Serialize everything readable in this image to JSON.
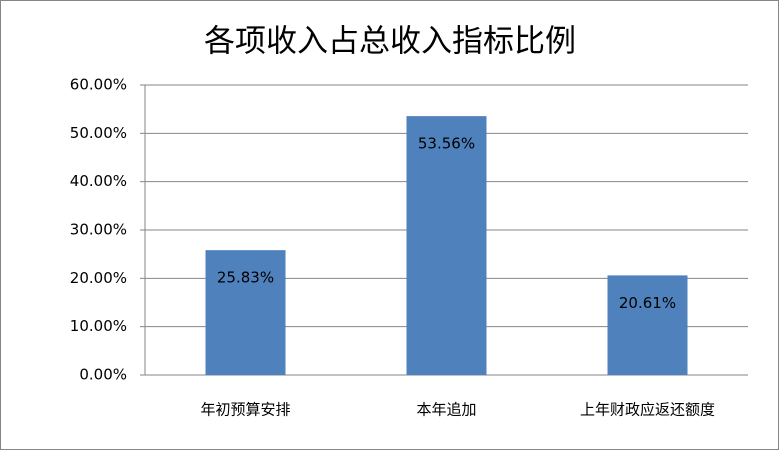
{
  "chart_data": {
    "type": "bar",
    "title": "各项收入占总收入指标比例",
    "categories": [
      "年初预算安排",
      "本年追加",
      "上年财政应返还额度"
    ],
    "values": [
      25.83,
      53.56,
      20.61
    ],
    "value_labels": [
      "25.83%",
      "53.56%",
      "20.61%"
    ],
    "color": "#4f81bd",
    "ylim": [
      0,
      60
    ],
    "yticks": [
      {
        "value": 0,
        "label": "0.00%"
      },
      {
        "value": 10,
        "label": "10.00%"
      },
      {
        "value": 20,
        "label": "20.00%"
      },
      {
        "value": 30,
        "label": "30.00%"
      },
      {
        "value": 40,
        "label": "40.00%"
      },
      {
        "value": 50,
        "label": "50.00%"
      },
      {
        "value": 60,
        "label": "60.00%"
      }
    ],
    "grid": true
  }
}
